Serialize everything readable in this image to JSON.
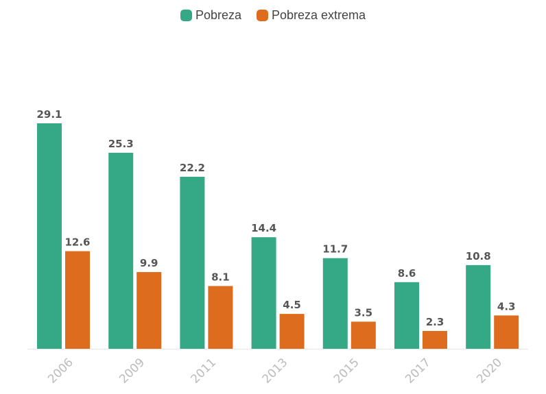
{
  "chart_data": {
    "type": "bar",
    "categories": [
      "2006",
      "2009",
      "2011",
      "2013",
      "2015",
      "2017",
      "2020"
    ],
    "series": [
      {
        "name": "Pobreza",
        "color": "#35a986",
        "values": [
          29.1,
          25.3,
          22.2,
          14.4,
          11.7,
          8.6,
          10.8
        ]
      },
      {
        "name": "Pobreza extrema",
        "color": "#dd6c1e",
        "values": [
          12.6,
          9.9,
          8.1,
          4.5,
          3.5,
          2.3,
          4.3
        ]
      }
    ],
    "ylim": [
      0,
      29.1
    ],
    "grid": false,
    "legend_position": "top-center",
    "data_labels": true
  }
}
